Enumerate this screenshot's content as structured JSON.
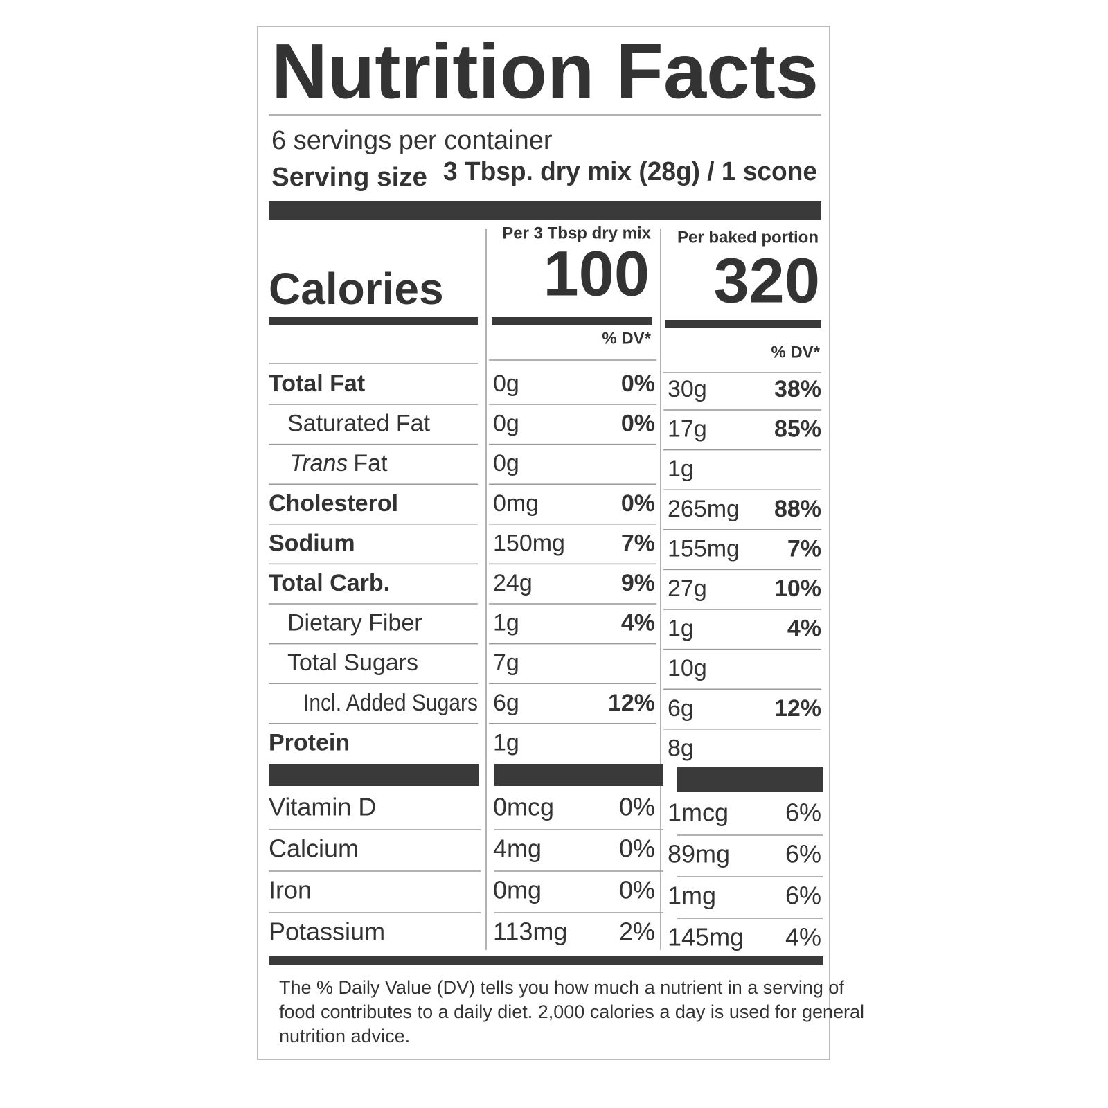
{
  "title": "Nutrition Facts",
  "servings": "6 servings per container",
  "serving_size": {
    "label": "Serving size",
    "value": "3 Tbsp. dry mix (28g) / 1 scone"
  },
  "columns": [
    "Per 3 Tbsp dry mix",
    "Per baked portion"
  ],
  "calories": {
    "label": "Calories",
    "values": [
      "100",
      "320"
    ]
  },
  "dv_header": [
    "% DV*",
    "% DV*"
  ],
  "nutrients": [
    {
      "name": "Total Fat",
      "dry": [
        "0g",
        "0%"
      ],
      "baked": [
        "30g",
        "38%"
      ]
    },
    {
      "name": "Saturated Fat",
      "dry": [
        "0g",
        "0%"
      ],
      "baked": [
        "17g",
        "85%"
      ]
    },
    {
      "name": [
        "Trans",
        "Fat"
      ],
      "dry": [
        "0g"
      ],
      "baked": [
        "1g"
      ]
    },
    {
      "name": "Cholesterol",
      "dry": [
        "0mg",
        "0%"
      ],
      "baked": [
        "265mg",
        "88%"
      ]
    },
    {
      "name": "Sodium",
      "dry": [
        "150mg",
        "7%"
      ],
      "baked": [
        "155mg",
        "7%"
      ]
    },
    {
      "name": "Total Carb.",
      "dry": [
        "24g",
        "9%"
      ],
      "baked": [
        "27g",
        "10%"
      ]
    },
    {
      "name": "Dietary Fiber",
      "dry": [
        "1g",
        "4%"
      ],
      "baked": [
        "1g",
        "4%"
      ]
    },
    {
      "name": "Total Sugars",
      "dry": [
        "7g"
      ],
      "baked": [
        "10g"
      ]
    },
    {
      "name": "Incl. Added Sugars",
      "dry": [
        "6g",
        "12%"
      ],
      "baked": [
        "6g",
        "12%"
      ]
    },
    {
      "name": "Protein",
      "dry": [
        "1g"
      ],
      "baked": [
        "8g"
      ]
    }
  ],
  "vitamins": [
    {
      "name": "Vitamin D",
      "dry": [
        "0mcg",
        "0%"
      ],
      "baked": [
        "1mcg",
        "6%"
      ]
    },
    {
      "name": "Calcium",
      "dry": [
        "4mg",
        "0%"
      ],
      "baked": [
        "89mg",
        "6%"
      ]
    },
    {
      "name": "Iron",
      "dry": [
        "0mg",
        "0%"
      ],
      "baked": [
        "1mg",
        "6%"
      ]
    },
    {
      "name": "Potassium",
      "dry": [
        "113mg",
        "2%"
      ],
      "baked": [
        "145mg",
        "4%"
      ]
    }
  ],
  "footnote": [
    "The % Daily Value (DV) tells you how much a nutrient in a serving of",
    "food contributes to a daily diet. 2,000 calories a day is used for general",
    "nutrition advice."
  ]
}
